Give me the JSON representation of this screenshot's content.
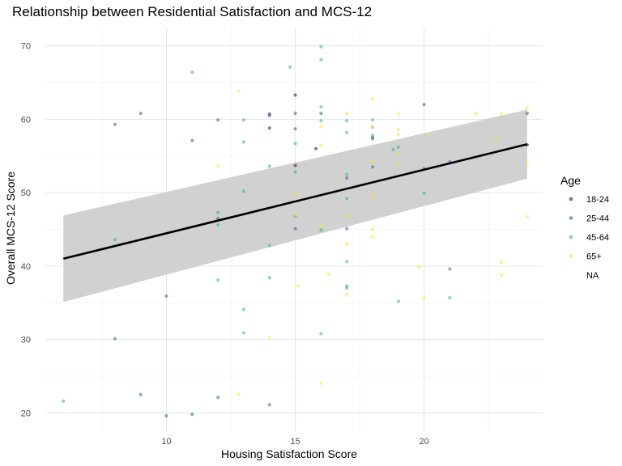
{
  "chart_data": {
    "type": "scatter",
    "title": "Relationship between Residential Satisfaction and MCS-12",
    "xlabel": "Housing Satisfaction Score",
    "ylabel": "Overall MCS-12 Score",
    "xlim": [
      5.3,
      24.6
    ],
    "ylim": [
      17.5,
      72.5
    ],
    "x_ticks": [
      10,
      15,
      20
    ],
    "y_ticks": [
      20,
      30,
      40,
      50,
      60,
      70
    ],
    "grid": true,
    "legend": {
      "title": "Age",
      "position": "right"
    },
    "series": [
      {
        "name": "18-24",
        "color": "#440154",
        "points": [
          [
            15,
            63.3
          ],
          [
            14,
            60.7
          ],
          [
            14,
            58.8
          ],
          [
            15,
            53.7
          ],
          [
            15.8,
            56
          ],
          [
            24,
            56.5
          ],
          [
            18,
            57.5
          ]
        ]
      },
      {
        "name": "25-44",
        "color": "#31688E",
        "points": [
          [
            8,
            59.3
          ],
          [
            9,
            60.8
          ],
          [
            11,
            57.1
          ],
          [
            12,
            59.9
          ],
          [
            14,
            60.5
          ],
          [
            15,
            60.8
          ],
          [
            16,
            60.8
          ],
          [
            20,
            62
          ],
          [
            24,
            60.8
          ],
          [
            15,
            58.7
          ],
          [
            18,
            53.5
          ],
          [
            20,
            53.3
          ],
          [
            21,
            54.2
          ],
          [
            15,
            45.1
          ],
          [
            17,
            45.1
          ],
          [
            21,
            39.6
          ],
          [
            10,
            35.9
          ],
          [
            8,
            30.1
          ],
          [
            9,
            22.5
          ],
          [
            10,
            19.6
          ],
          [
            11,
            19.8
          ],
          [
            12,
            22.1
          ],
          [
            14,
            21.1
          ],
          [
            12,
            46.5
          ],
          [
            17,
            52
          ]
        ]
      },
      {
        "name": "45-64",
        "color": "#35B779",
        "points": [
          [
            6,
            21.6
          ],
          [
            8,
            43.6
          ],
          [
            11,
            66.4
          ],
          [
            12,
            47.3
          ],
          [
            12,
            45.6
          ],
          [
            12,
            38.1
          ],
          [
            13,
            59.9
          ],
          [
            13,
            56.9
          ],
          [
            13,
            50.2
          ],
          [
            13,
            34.1
          ],
          [
            13,
            30.9
          ],
          [
            14,
            53.6
          ],
          [
            14,
            42.8
          ],
          [
            14,
            38.4
          ],
          [
            14.8,
            67.1
          ],
          [
            15,
            56.7
          ],
          [
            15,
            52.8
          ],
          [
            15,
            46.8
          ],
          [
            16,
            69.9
          ],
          [
            16,
            68.1
          ],
          [
            16,
            61.7
          ],
          [
            16,
            59.8
          ],
          [
            16,
            44.9
          ],
          [
            16,
            30.8
          ],
          [
            17,
            59.8
          ],
          [
            17,
            58.2
          ],
          [
            17,
            52.5
          ],
          [
            17,
            49.2
          ],
          [
            17,
            40.6
          ],
          [
            17,
            37.3
          ],
          [
            17,
            37
          ],
          [
            18,
            59.9
          ],
          [
            18,
            58.9
          ],
          [
            18,
            57.8
          ],
          [
            18,
            57.3
          ],
          [
            18.8,
            55.9
          ],
          [
            19,
            56.2
          ],
          [
            19,
            35.2
          ],
          [
            20,
            49.9
          ],
          [
            21,
            35.7
          ]
        ]
      },
      {
        "name": "65+",
        "color": "#FDE725",
        "points": [
          [
            12,
            53.6
          ],
          [
            12.8,
            22.5
          ],
          [
            12.8,
            63.8
          ],
          [
            14,
            30.2
          ],
          [
            15,
            49.7
          ],
          [
            15,
            47
          ],
          [
            15.1,
            37.3
          ],
          [
            16,
            59
          ],
          [
            16,
            56.4
          ],
          [
            16,
            45.5
          ],
          [
            16,
            24
          ],
          [
            16.3,
            38.9
          ],
          [
            17,
            60.8
          ],
          [
            17,
            46.8
          ],
          [
            17,
            43
          ],
          [
            17,
            36.1
          ],
          [
            18,
            62.8
          ],
          [
            18,
            59
          ],
          [
            18,
            54.3
          ],
          [
            18,
            49.6
          ],
          [
            18,
            45
          ],
          [
            18,
            44
          ],
          [
            19,
            60.8
          ],
          [
            19,
            58.6
          ],
          [
            19,
            57.9
          ],
          [
            19,
            55.2
          ],
          [
            19,
            53.8
          ],
          [
            19.8,
            39.9
          ],
          [
            20,
            35.6
          ],
          [
            20.2,
            57.9
          ],
          [
            22,
            60.8
          ],
          [
            23,
            60.7
          ],
          [
            22.8,
            57.3
          ],
          [
            23,
            40.5
          ],
          [
            23,
            38.8
          ],
          [
            24,
            61.5
          ],
          [
            24,
            54.1
          ],
          [
            24,
            46.7
          ]
        ]
      }
    ],
    "legend_entries": [
      "18-24",
      "25-44",
      "45-64",
      "65+",
      "NA"
    ],
    "regression": {
      "method": "linear",
      "color": "#000000",
      "band_color": "#CCCCCC",
      "x": [
        6,
        24
      ],
      "fit": [
        41.0,
        56.6
      ],
      "lower": [
        35.1,
        51.9
      ],
      "upper": [
        46.9,
        61.3
      ]
    }
  }
}
